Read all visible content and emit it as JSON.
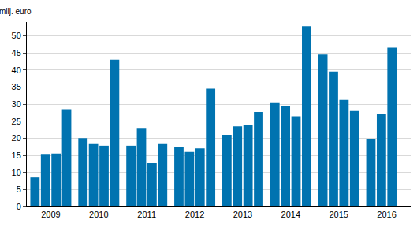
{
  "chart_data": {
    "type": "bar",
    "ylabel": "milj. euro",
    "categories": [
      "2009",
      "2010",
      "2011",
      "2012",
      "2013",
      "2014",
      "2015",
      "2016"
    ],
    "series": [
      {
        "color": "#0073b0",
        "values": [
          8.5,
          20,
          17.8,
          17.4,
          21,
          30.3,
          44.5,
          19.7
        ]
      },
      {
        "color": "#0073b0",
        "values": [
          15.2,
          18.3,
          22.8,
          16,
          23.5,
          29.3,
          39.5,
          27
        ]
      },
      {
        "color": "#0073b0",
        "values": [
          15.5,
          17.8,
          12.7,
          17,
          23.8,
          26.4,
          31.2,
          46.5
        ]
      },
      {
        "color": "#0073b0",
        "values": [
          28.5,
          43,
          18.3,
          34.5,
          27.7,
          52.8,
          28,
          null
        ]
      }
    ],
    "ylim": [
      0,
      54
    ],
    "yticks": [
      0,
      5,
      10,
      15,
      20,
      25,
      30,
      35,
      40,
      45,
      50
    ],
    "grid": true
  }
}
